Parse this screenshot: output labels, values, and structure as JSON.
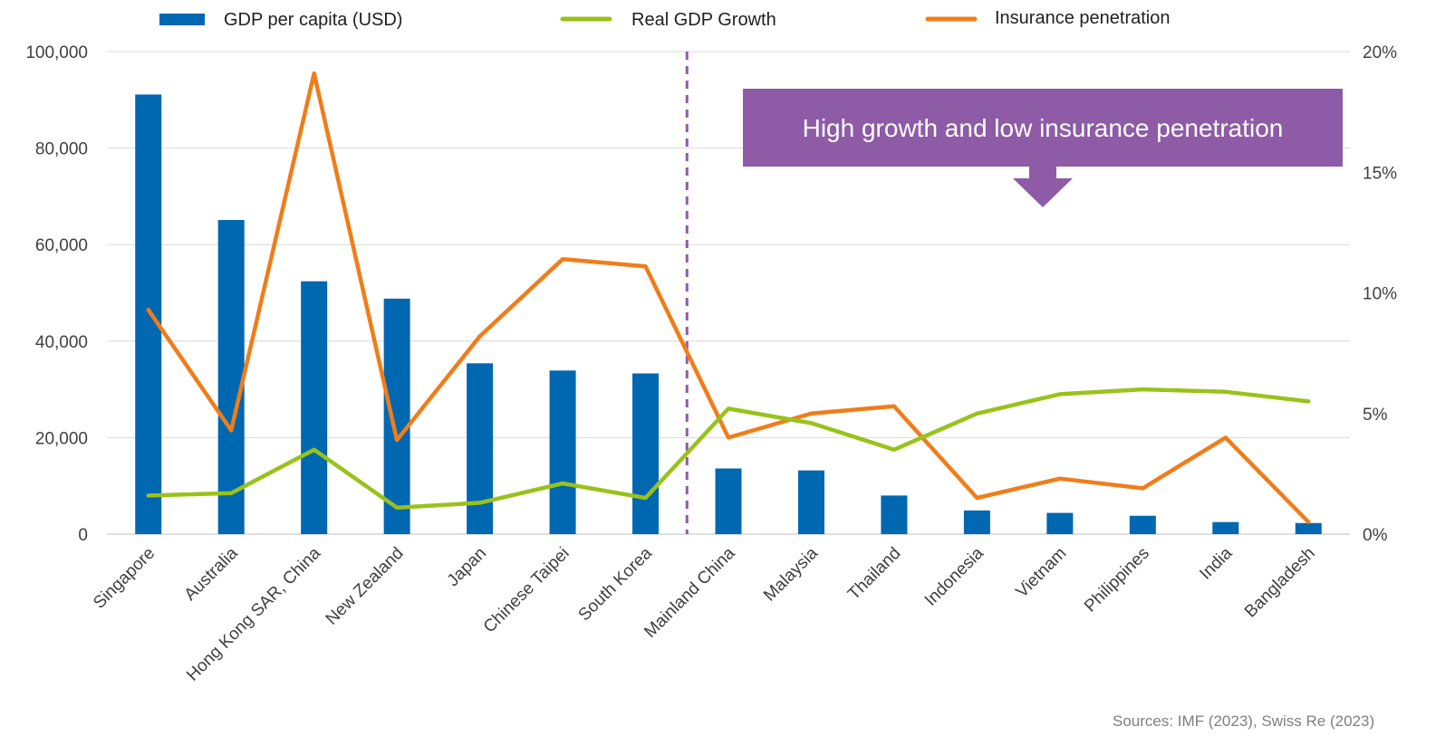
{
  "chart_data": {
    "type": "bar",
    "categories": [
      "Singapore",
      "Australia",
      "Hong Kong SAR, China",
      "New Zealand",
      "Japan",
      "Chinese Taipei",
      "South Korea",
      "Mainland China",
      "Malaysia",
      "Thailand",
      "Indonesia",
      "Vietnam",
      "Philippines",
      "India",
      "Bangladesh"
    ],
    "series": [
      {
        "name": "GDP per capita (USD)",
        "type": "bar",
        "axis": "left",
        "color": "#0067b1",
        "values": [
          91100,
          65100,
          52400,
          48800,
          35400,
          33900,
          33300,
          13600,
          13200,
          8000,
          4900,
          4400,
          3800,
          2500,
          2300
        ]
      },
      {
        "name": "Real GDP Growth",
        "type": "line",
        "axis": "right",
        "unit": "%",
        "color": "#99c21a",
        "values": [
          1.6,
          1.7,
          3.5,
          1.1,
          1.3,
          2.1,
          1.5,
          5.2,
          4.6,
          3.5,
          5.0,
          5.8,
          6.0,
          5.9,
          5.5
        ]
      },
      {
        "name": "Insurance penetration",
        "type": "line",
        "axis": "right",
        "unit": "%",
        "color": "#f07d19",
        "values": [
          9.3,
          4.3,
          19.1,
          3.9,
          8.2,
          11.4,
          11.1,
          4.0,
          5.0,
          5.3,
          1.5,
          2.3,
          1.9,
          4.0,
          0.5
        ]
      }
    ],
    "y_left": {
      "ylim": [
        0,
        100000
      ],
      "ticks": [
        0,
        20000,
        40000,
        60000,
        80000,
        100000
      ],
      "tick_labels": [
        "0",
        "20,000",
        "40,000",
        "60,000",
        "80,000",
        "100,000"
      ]
    },
    "y_right": {
      "ylim": [
        0,
        20
      ],
      "ticks": [
        0,
        5,
        10,
        15,
        20
      ],
      "tick_labels": [
        "0%",
        "5%",
        "10%",
        "15%",
        "20%"
      ]
    },
    "divider_after_category": "South Korea",
    "grid": true,
    "legend_position": "top",
    "callout": {
      "text": "High growth and low insurance penetration",
      "color": "#8e5ba6"
    },
    "source": "Sources: IMF (2023), Swiss Re (2023)",
    "colors": {
      "grid": "#d9d9d9",
      "divider": "#8e5ba6",
      "axis_text": "#404040"
    }
  }
}
